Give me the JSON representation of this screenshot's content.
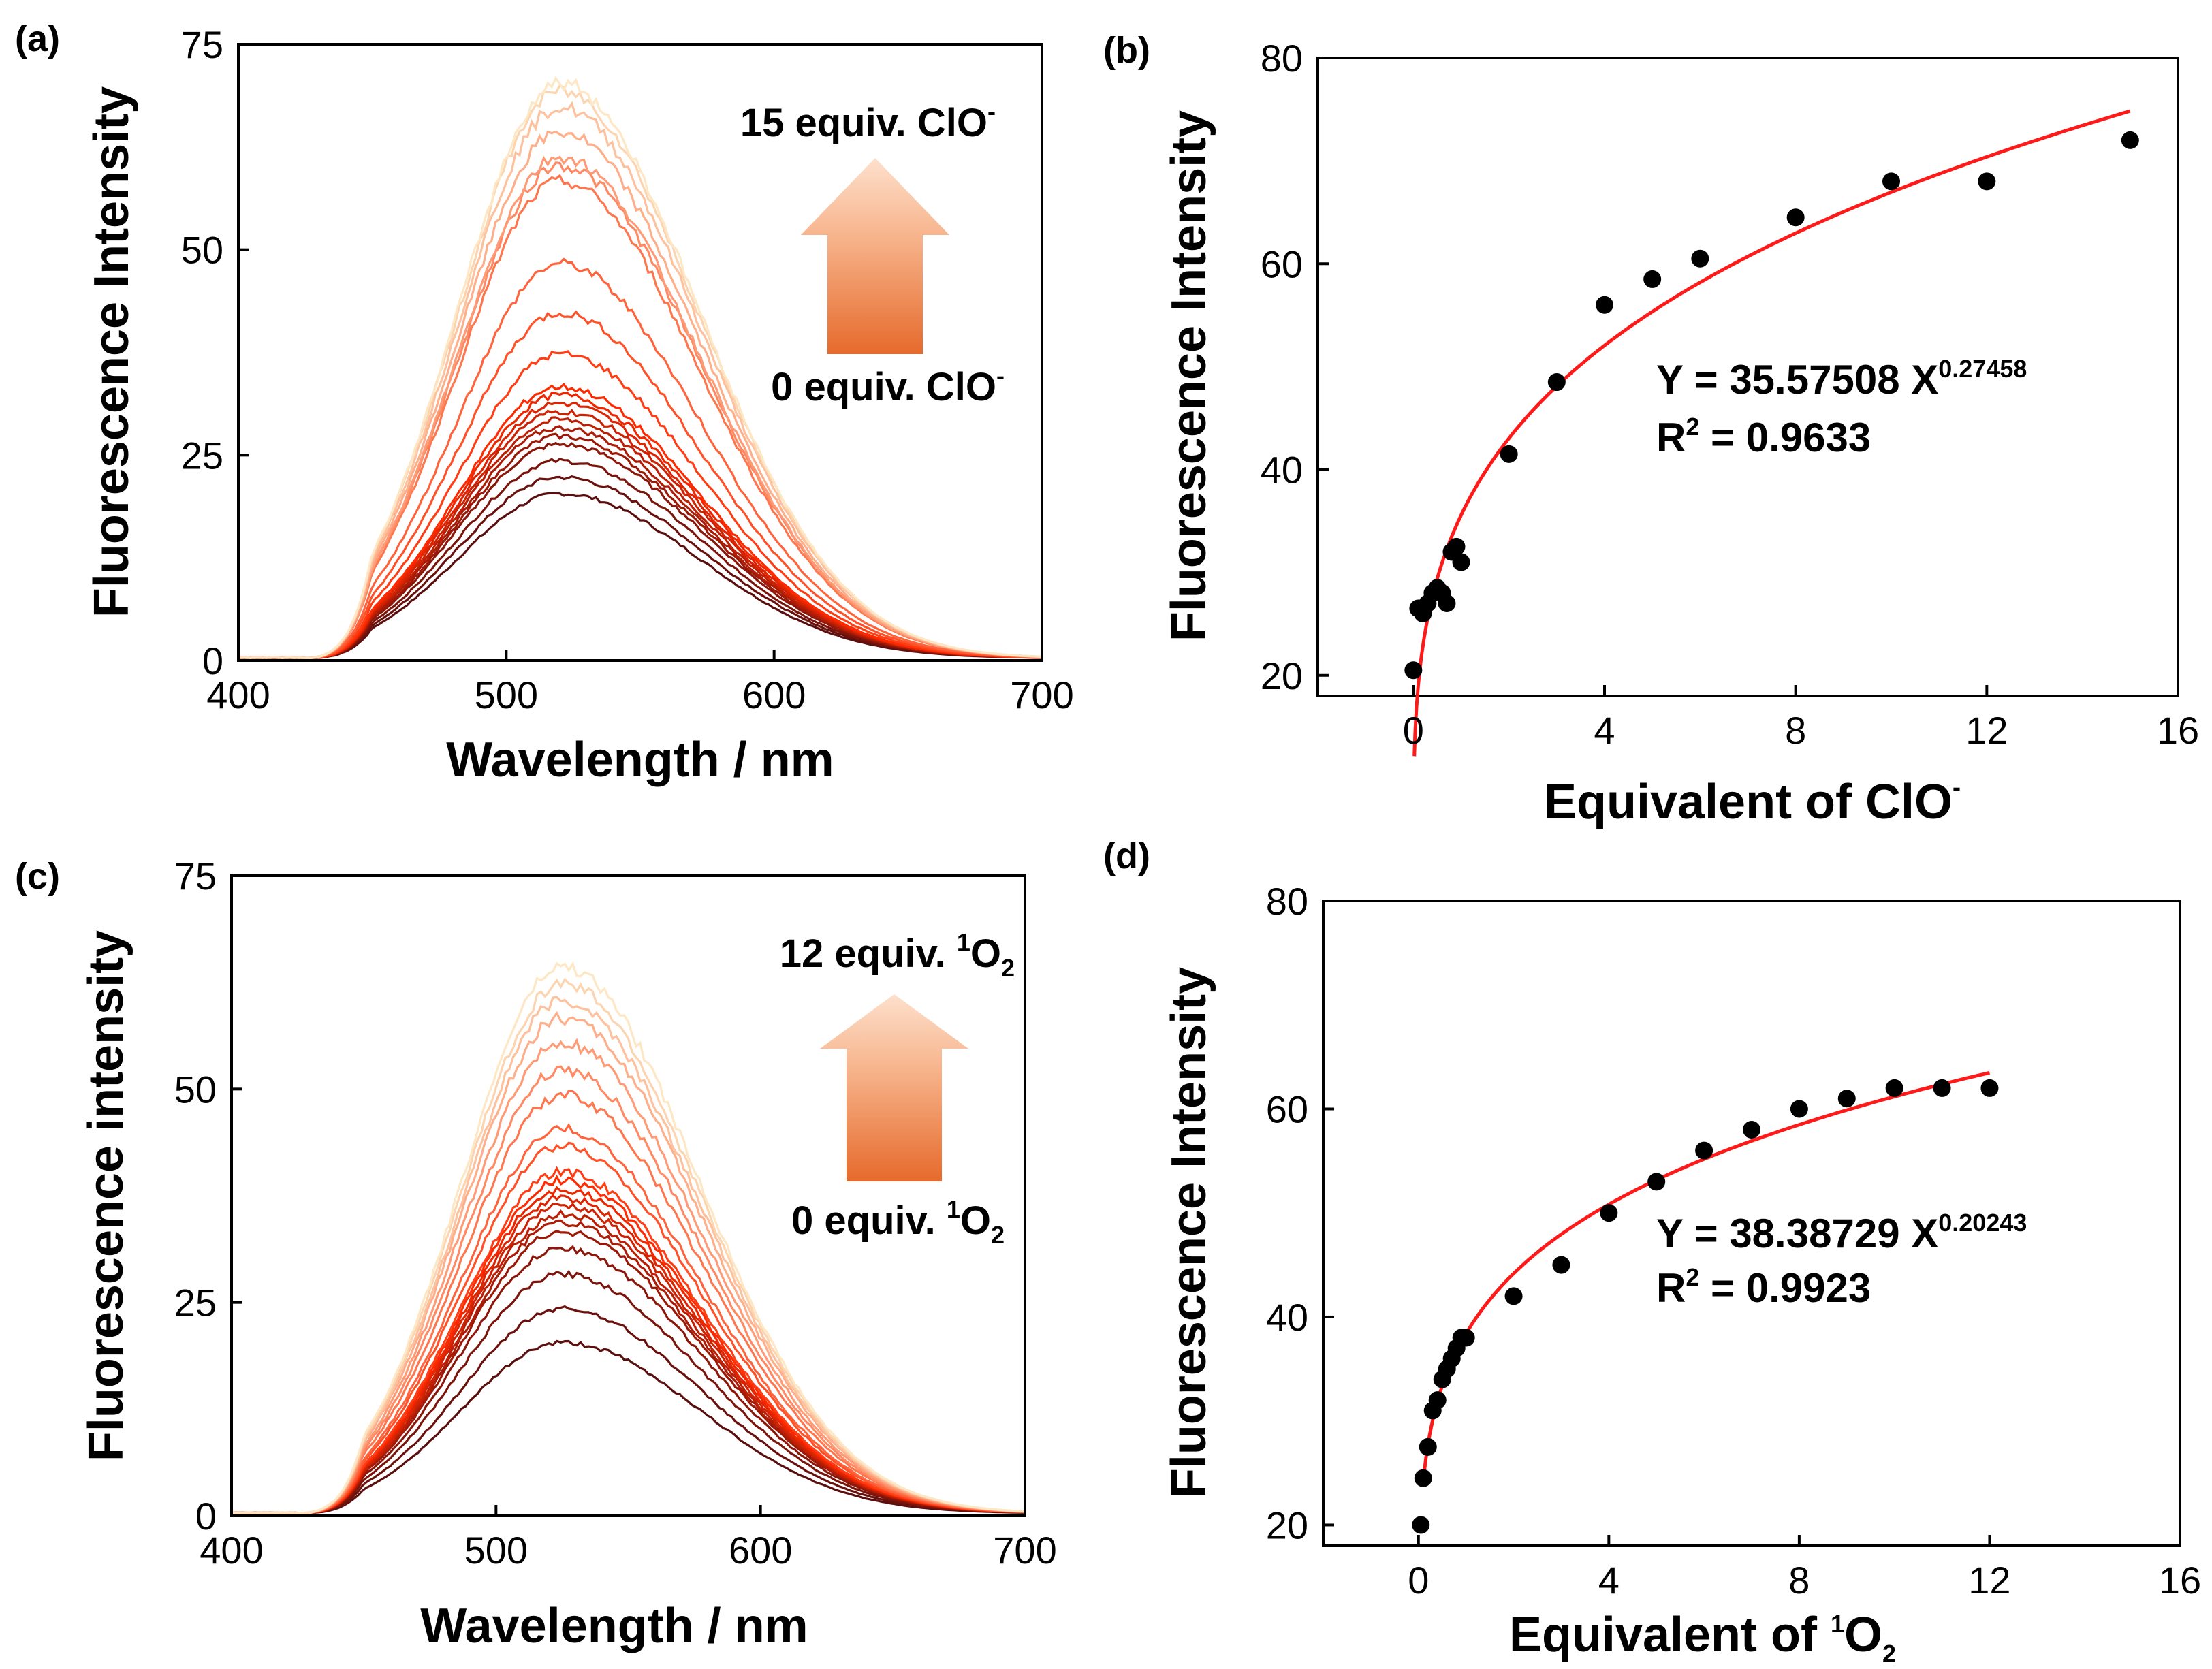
{
  "chart_data": [
    {
      "panel": "(a)",
      "type": "line",
      "xlabel": "Wavelength / nm",
      "ylabel": "Fluorescence Intensity",
      "xlim": [
        400,
        700
      ],
      "ylim": [
        0,
        75
      ],
      "xticks": [
        400,
        500,
        600,
        700
      ],
      "yticks": [
        0,
        25,
        50,
        75
      ],
      "peak_wavelength": 520,
      "onset_wavelength": 425,
      "peak_intensities": [
        20,
        22,
        24,
        26,
        27,
        28,
        29,
        30,
        31,
        32,
        33,
        37,
        42,
        48,
        58,
        60,
        61,
        64,
        67,
        69,
        70
      ],
      "annotation_top": {
        "text": "15 equiv. ClO",
        "sup": "-"
      },
      "annotation_bottom": {
        "text": "0 equiv. ClO",
        "sup": "-"
      },
      "color_start": "#5a0e0e",
      "color_mid": "#ff2a00",
      "color_end": "#fde7c4"
    },
    {
      "panel": "(b)",
      "type": "scatter",
      "xlabel": "Equivalent of ClO",
      "xlabel_sup": "-",
      "ylabel": "Fluorescence Intensity",
      "xlim": [
        -2,
        16
      ],
      "ylim": [
        18,
        80
      ],
      "xticks": [
        0,
        4,
        8,
        12,
        16
      ],
      "yticks": [
        20,
        40,
        60,
        80
      ],
      "x": [
        0,
        0.1,
        0.2,
        0.3,
        0.4,
        0.5,
        0.6,
        0.7,
        0.8,
        0.9,
        1,
        2,
        3,
        4,
        5,
        6,
        8,
        10,
        12,
        15
      ],
      "y": [
        20.5,
        26.5,
        26,
        27,
        28,
        28.5,
        28,
        27,
        32,
        32.5,
        31,
        41.5,
        48.5,
        56,
        58.5,
        60.5,
        64.5,
        68,
        68,
        72
      ],
      "fit": {
        "a": 35.57508,
        "b": 0.27458,
        "x_range": [
          0.02,
          15
        ]
      },
      "fit_color": "#ff1a1a",
      "equation": {
        "prefix": "Y = 35.57508 X",
        "exponent": "0.27458"
      },
      "r2": {
        "prefix": "R",
        "sup": "2",
        "value": " = 0.9633"
      }
    },
    {
      "panel": "(c)",
      "type": "line",
      "xlabel": "Wavelength / nm",
      "ylabel": "Fluorescence intensity",
      "xlim": [
        400,
        700
      ],
      "ylim": [
        0,
        75
      ],
      "xticks": [
        400,
        500,
        600,
        700
      ],
      "yticks": [
        0,
        25,
        50,
        75
      ],
      "peak_wavelength": 525,
      "onset_wavelength": 425,
      "peak_intensities": [
        20,
        24,
        28,
        31,
        33,
        34,
        35,
        36,
        37,
        38,
        39,
        40,
        43,
        45,
        49,
        52,
        55,
        58,
        60,
        62,
        64
      ],
      "annotation_top": {
        "text": "12 equiv. ",
        "sup": "1",
        "mid": "O",
        "sub": "2"
      },
      "annotation_bottom": {
        "text": "0 equiv. ",
        "sup": "1",
        "mid": "O",
        "sub": "2"
      },
      "color_start": "#5a0e0e",
      "color_mid": "#ff2a00",
      "color_end": "#fde7c4"
    },
    {
      "panel": "(d)",
      "type": "scatter",
      "xlabel": "Equivalent of ",
      "xlabel_sup": "1",
      "xlabel_mid": "O",
      "xlabel_sub": "2",
      "ylabel": "Fluorescence Intensity",
      "xlim": [
        -2,
        16
      ],
      "ylim": [
        18,
        80
      ],
      "xticks": [
        0,
        4,
        8,
        12,
        16
      ],
      "yticks": [
        20,
        40,
        60,
        80
      ],
      "x": [
        0.05,
        0.1,
        0.2,
        0.3,
        0.4,
        0.5,
        0.6,
        0.7,
        0.8,
        0.9,
        1,
        2,
        3,
        4,
        5,
        6,
        7,
        8,
        9,
        10,
        11,
        12
      ],
      "y": [
        20,
        24.5,
        27.5,
        31,
        32,
        34,
        35,
        36,
        37,
        38,
        38,
        42,
        45,
        50,
        53,
        56,
        58,
        60,
        61,
        62,
        62,
        62
      ],
      "fit": {
        "a": 38.38729,
        "b": 0.20243,
        "x_range": [
          0.1,
          12
        ]
      },
      "fit_color": "#ff1a1a",
      "equation": {
        "prefix": "Y = 38.38729 X",
        "exponent": "0.20243"
      },
      "r2": {
        "prefix": "R",
        "sup": "2",
        "value": " = 0.9923"
      }
    }
  ]
}
